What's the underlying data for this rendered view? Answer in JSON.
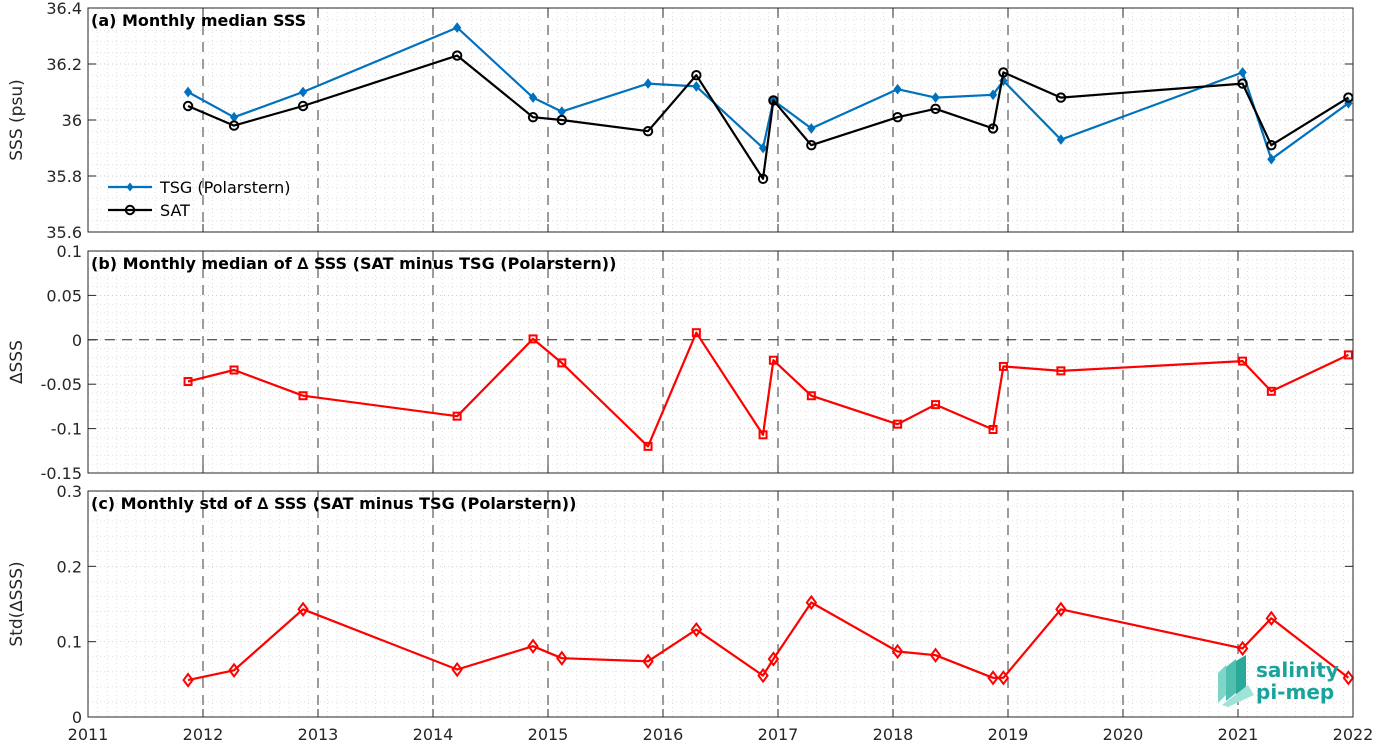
{
  "chart_data": [
    {
      "type": "line",
      "title": "(a) Monthly median SSS",
      "ylabel": "SSS (psu)",
      "xlim": [
        2011,
        2022
      ],
      "ylim": [
        35.6,
        36.4
      ],
      "yticks": [
        "35.6",
        "35.8",
        "36",
        "36.2",
        "36.4"
      ],
      "grid": true,
      "legend": "bottom-left",
      "series": [
        {
          "name": "TSG (Polarstern)",
          "color": "#0072BD",
          "marker": "diamond-filled",
          "x": [
            2011.87,
            2012.27,
            2012.87,
            2014.21,
            2014.87,
            2015.12,
            2015.87,
            2016.29,
            2016.87,
            2016.96,
            2017.29,
            2018.04,
            2018.37,
            2018.87,
            2018.96,
            2019.46,
            2021.04,
            2021.29,
            2021.96
          ],
          "y": [
            36.1,
            36.01,
            36.1,
            36.33,
            36.08,
            36.03,
            36.13,
            36.12,
            35.9,
            36.07,
            35.97,
            36.11,
            36.08,
            36.09,
            36.14,
            35.93,
            36.17,
            35.86,
            36.06
          ]
        },
        {
          "name": "SAT",
          "color": "#000000",
          "marker": "circle-open",
          "x": [
            2011.87,
            2012.27,
            2012.87,
            2014.21,
            2014.87,
            2015.12,
            2015.87,
            2016.29,
            2016.87,
            2016.96,
            2017.29,
            2018.04,
            2018.37,
            2018.87,
            2018.96,
            2019.46,
            2021.04,
            2021.29,
            2021.96
          ],
          "y": [
            36.05,
            35.98,
            36.05,
            36.23,
            36.01,
            36.0,
            35.96,
            36.16,
            35.79,
            36.07,
            35.91,
            36.01,
            36.04,
            35.97,
            36.17,
            36.08,
            36.13,
            35.91,
            36.08
          ]
        }
      ]
    },
    {
      "type": "line",
      "title": "(b) Monthly median of ∆ SSS (SAT minus TSG (Polarstern))",
      "ylabel": "∆SSS",
      "xlim": [
        2011,
        2022
      ],
      "ylim": [
        -0.15,
        0.1
      ],
      "yticks": [
        "-0.15",
        "-0.1",
        "-0.05",
        "0",
        "0.05",
        "0.1"
      ],
      "grid": true,
      "zero_line": true,
      "series": [
        {
          "color": "#FF0000",
          "marker": "square-open",
          "x": [
            2011.87,
            2012.27,
            2012.87,
            2014.21,
            2014.87,
            2015.12,
            2015.87,
            2016.29,
            2016.87,
            2016.96,
            2017.29,
            2018.04,
            2018.37,
            2018.87,
            2018.96,
            2019.46,
            2021.04,
            2021.29,
            2021.96
          ],
          "y": [
            -0.047,
            -0.034,
            -0.063,
            -0.086,
            0.001,
            -0.026,
            -0.12,
            0.008,
            -0.107,
            -0.023,
            -0.063,
            -0.095,
            -0.073,
            -0.101,
            -0.03,
            -0.035,
            -0.024,
            -0.058,
            -0.017
          ]
        }
      ]
    },
    {
      "type": "line",
      "title": "(c) Monthly std of ∆ SSS (SAT minus TSG (Polarstern))",
      "ylabel": "Std(∆SSS)",
      "xlabel": "",
      "xlim": [
        2011,
        2022
      ],
      "ylim": [
        0,
        0.3
      ],
      "yticks": [
        "0",
        "0.1",
        "0.2",
        "0.3"
      ],
      "xticks": [
        "2011",
        "2012",
        "2013",
        "2014",
        "2015",
        "2016",
        "2017",
        "2018",
        "2019",
        "2020",
        "2021",
        "2022"
      ],
      "grid": true,
      "series": [
        {
          "color": "#FF0000",
          "marker": "diamond-open",
          "x": [
            2011.87,
            2012.27,
            2012.87,
            2014.21,
            2014.87,
            2015.12,
            2015.87,
            2016.29,
            2016.87,
            2016.96,
            2017.29,
            2018.04,
            2018.37,
            2018.87,
            2018.96,
            2019.46,
            2021.04,
            2021.29,
            2021.96
          ],
          "y": [
            0.049,
            0.062,
            0.143,
            0.063,
            0.094,
            0.078,
            0.074,
            0.116,
            0.055,
            0.077,
            0.152,
            0.087,
            0.082,
            0.052,
            0.052,
            0.143,
            0.091,
            0.131,
            0.052
          ]
        }
      ]
    }
  ],
  "logo": {
    "line1": "salinity",
    "line2": "pi-mep",
    "color": "#1aa39a"
  }
}
